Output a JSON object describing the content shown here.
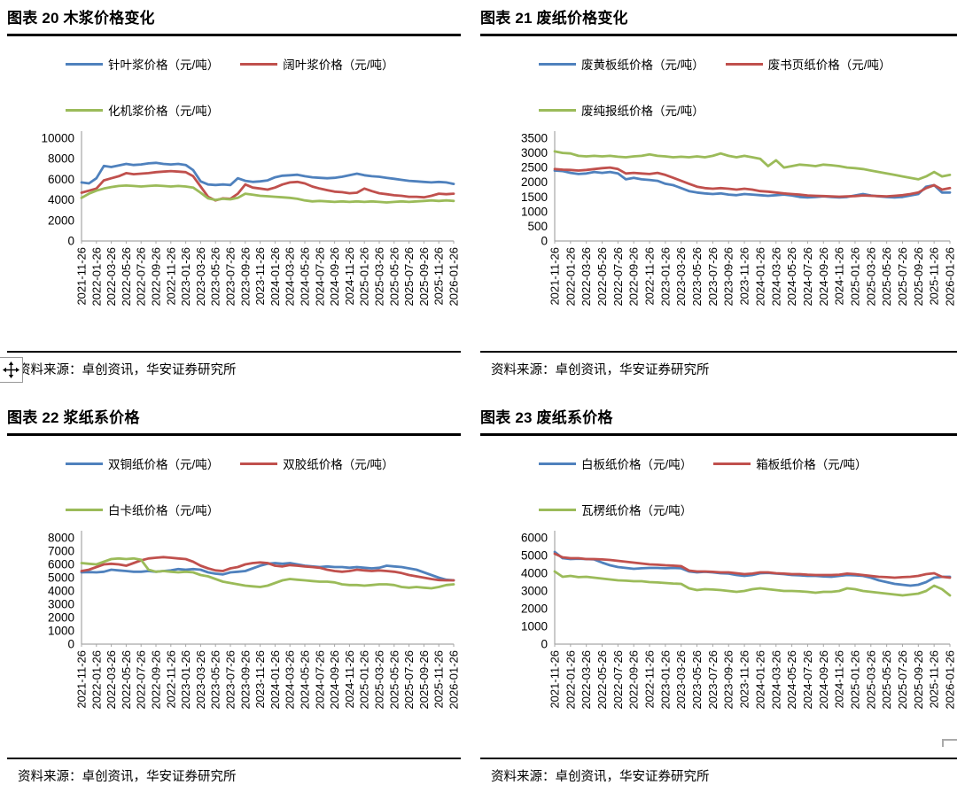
{
  "page": {
    "background": "#FFFFFF"
  },
  "icons": {
    "move_handle": "four-direction-move-arrows",
    "selection_corner": "object-selection-corner-bracket"
  },
  "source_note": "资料来源：卓创资讯，华安证券研究所",
  "chart_data": [
    {
      "type": "line",
      "figure_label": "图表 20",
      "title": "图表 20 木浆价格变化",
      "source": "资料来源：卓创资讯，华安证券研究所",
      "legend_position": "top",
      "grid": false,
      "xlabel": "",
      "ylabel": "",
      "ylim": [
        0,
        10000
      ],
      "ytick_interval": 2000,
      "x_sampling": "monthly, 2021-11-26 to 2026-01-26",
      "x_tick_labels": [
        "2021-11-26",
        "2022-01-26",
        "2022-03-26",
        "2022-05-26",
        "2022-07-26",
        "2022-09-26",
        "2022-11-26",
        "2023-01-26",
        "2023-03-26",
        "2023-05-26",
        "2023-07-26",
        "2023-09-26",
        "2023-11-26",
        "2024-01-26",
        "2024-03-26",
        "2024-05-26",
        "2024-07-26",
        "2024-09-26",
        "2024-11-26",
        "2025-01-26",
        "2025-03-26",
        "2025-05-26",
        "2025-07-26",
        "2025-09-26",
        "2025-11-26",
        "2026-01-26"
      ],
      "series": [
        {
          "name": "针叶浆价格（元/吨）",
          "color": "#4F81BD",
          "values": [
            5700,
            5600,
            6100,
            7300,
            7200,
            7350,
            7500,
            7400,
            7450,
            7550,
            7600,
            7500,
            7450,
            7500,
            7400,
            6900,
            5800,
            5500,
            5450,
            5500,
            5450,
            6100,
            5850,
            5750,
            5800,
            5900,
            6200,
            6350,
            6400,
            6450,
            6300,
            6200,
            6150,
            6100,
            6150,
            6250,
            6400,
            6550,
            6400,
            6300,
            6250,
            6150,
            6050,
            5950,
            5850,
            5800,
            5750,
            5700,
            5750,
            5700,
            5550
          ]
        },
        {
          "name": "阔叶浆价格（元/吨）",
          "color": "#C0504D",
          "values": [
            4700,
            4900,
            5100,
            5900,
            6100,
            6300,
            6600,
            6500,
            6550,
            6600,
            6700,
            6750,
            6800,
            6750,
            6700,
            6300,
            5300,
            4300,
            3950,
            4150,
            4100,
            4600,
            5500,
            5200,
            5100,
            5000,
            5200,
            5500,
            5700,
            5750,
            5600,
            5300,
            5100,
            4950,
            4800,
            4750,
            4650,
            4700,
            5100,
            4850,
            4650,
            4550,
            4450,
            4400,
            4300,
            4300,
            4250,
            4400,
            4600,
            4550,
            4600
          ]
        },
        {
          "name": "化机浆价格（元/吨）",
          "color": "#9BBB59",
          "values": [
            4200,
            4600,
            4900,
            5100,
            5250,
            5350,
            5400,
            5350,
            5300,
            5350,
            5400,
            5350,
            5300,
            5350,
            5300,
            5200,
            4700,
            4150,
            4000,
            4100,
            4050,
            4200,
            4600,
            4500,
            4400,
            4350,
            4300,
            4250,
            4200,
            4100,
            3950,
            3850,
            3900,
            3850,
            3800,
            3850,
            3800,
            3850,
            3800,
            3850,
            3800,
            3750,
            3800,
            3850,
            3800,
            3850,
            3900,
            3950,
            3900,
            3950,
            3900
          ]
        }
      ]
    },
    {
      "type": "line",
      "figure_label": "图表 21",
      "title": "图表 21 废纸价格变化",
      "source": "资料来源：卓创资讯，华安证券研究所",
      "legend_position": "top",
      "grid": false,
      "xlabel": "",
      "ylabel": "",
      "ylim": [
        0,
        3500
      ],
      "ytick_interval": 500,
      "x_sampling": "monthly, 2021-11-26 to 2026-01-26",
      "x_tick_labels": [
        "2021-11-26",
        "2022-01-26",
        "2022-03-26",
        "2022-05-26",
        "2022-07-26",
        "2022-09-26",
        "2022-11-26",
        "2023-01-26",
        "2023-03-26",
        "2023-05-26",
        "2023-07-26",
        "2023-09-26",
        "2023-11-26",
        "2024-01-26",
        "2024-03-26",
        "2024-05-26",
        "2024-07-26",
        "2024-09-26",
        "2024-11-26",
        "2025-01-26",
        "2025-03-26",
        "2025-05-26",
        "2025-07-26",
        "2025-09-26",
        "2025-11-26",
        "2026-01-26"
      ],
      "series": [
        {
          "name": "废黄板纸价格（元/吨）",
          "color": "#4F81BD",
          "values": [
            2400,
            2380,
            2320,
            2280,
            2300,
            2350,
            2320,
            2350,
            2300,
            2100,
            2150,
            2100,
            2080,
            2050,
            1950,
            1900,
            1800,
            1700,
            1650,
            1620,
            1600,
            1620,
            1580,
            1560,
            1600,
            1580,
            1560,
            1540,
            1560,
            1580,
            1550,
            1500,
            1480,
            1500,
            1520,
            1500,
            1480,
            1500,
            1550,
            1600,
            1550,
            1520,
            1500,
            1480,
            1500,
            1550,
            1600,
            1850,
            1900,
            1650,
            1650
          ]
        },
        {
          "name": "废书页纸价格（元/吨）",
          "color": "#C0504D",
          "values": [
            2450,
            2430,
            2420,
            2400,
            2420,
            2450,
            2480,
            2500,
            2450,
            2300,
            2320,
            2300,
            2280,
            2320,
            2250,
            2150,
            2050,
            1950,
            1850,
            1800,
            1780,
            1800,
            1780,
            1750,
            1780,
            1750,
            1700,
            1680,
            1650,
            1620,
            1600,
            1580,
            1550,
            1540,
            1530,
            1520,
            1510,
            1520,
            1530,
            1550,
            1540,
            1530,
            1520,
            1540,
            1560,
            1600,
            1650,
            1800,
            1900,
            1750,
            1800
          ]
        },
        {
          "name": "废纯报纸价格（元/吨）",
          "color": "#9BBB59",
          "values": [
            3050,
            3000,
            2980,
            2900,
            2880,
            2900,
            2880,
            2900,
            2870,
            2850,
            2880,
            2900,
            2950,
            2900,
            2880,
            2850,
            2870,
            2850,
            2880,
            2850,
            2900,
            2980,
            2900,
            2850,
            2900,
            2850,
            2800,
            2550,
            2750,
            2500,
            2550,
            2600,
            2580,
            2550,
            2600,
            2580,
            2550,
            2500,
            2480,
            2450,
            2400,
            2350,
            2300,
            2250,
            2200,
            2150,
            2100,
            2200,
            2350,
            2200,
            2250
          ]
        }
      ]
    },
    {
      "type": "line",
      "figure_label": "图表 22",
      "title": "图表 22 浆纸系价格",
      "source": "资料来源：卓创资讯，华安证券研究所",
      "legend_position": "top",
      "grid": false,
      "xlabel": "",
      "ylabel": "",
      "ylim": [
        0,
        8000
      ],
      "ytick_interval": 1000,
      "x_sampling": "monthly, 2021-11-26 to 2026-01-26",
      "x_tick_labels": [
        "2021-11-26",
        "2022-01-26",
        "2022-03-26",
        "2022-05-26",
        "2022-07-26",
        "2022-09-26",
        "2022-11-26",
        "2023-01-26",
        "2023-03-26",
        "2023-05-26",
        "2023-07-26",
        "2023-09-26",
        "2023-11-26",
        "2024-01-26",
        "2024-03-26",
        "2024-05-26",
        "2024-07-26",
        "2024-09-26",
        "2024-11-26",
        "2025-01-26",
        "2025-03-26",
        "2025-05-26",
        "2025-07-26",
        "2025-09-26",
        "2025-11-26",
        "2026-01-26"
      ],
      "series": [
        {
          "name": "双铜纸价格（元/吨）",
          "color": "#4F81BD",
          "values": [
            5400,
            5420,
            5400,
            5450,
            5600,
            5550,
            5500,
            5450,
            5450,
            5500,
            5450,
            5500,
            5550,
            5650,
            5600,
            5650,
            5600,
            5400,
            5300,
            5250,
            5400,
            5450,
            5500,
            5700,
            5900,
            6050,
            6100,
            6050,
            6100,
            6000,
            5900,
            5850,
            5800,
            5850,
            5800,
            5800,
            5750,
            5800,
            5750,
            5700,
            5750,
            5900,
            5850,
            5800,
            5700,
            5600,
            5400,
            5200,
            5000,
            4850,
            4800
          ]
        },
        {
          "name": "双胶纸价格（元/吨）",
          "color": "#C0504D",
          "values": [
            5500,
            5600,
            5800,
            6000,
            6050,
            6000,
            5900,
            6100,
            6300,
            6450,
            6500,
            6550,
            6500,
            6450,
            6400,
            6200,
            5900,
            5700,
            5550,
            5500,
            5700,
            5800,
            6000,
            6100,
            6150,
            6100,
            5900,
            5850,
            5950,
            5900,
            5850,
            5800,
            5750,
            5600,
            5500,
            5450,
            5500,
            5600,
            5550,
            5500,
            5550,
            5500,
            5450,
            5350,
            5200,
            5100,
            5000,
            4900,
            4820,
            4800,
            4800
          ]
        },
        {
          "name": "白卡纸价格（元/吨）",
          "color": "#9BBB59",
          "values": [
            6100,
            6050,
            6000,
            6200,
            6400,
            6450,
            6400,
            6450,
            6350,
            5600,
            5450,
            5500,
            5450,
            5400,
            5450,
            5400,
            5200,
            5100,
            4900,
            4700,
            4600,
            4500,
            4400,
            4350,
            4300,
            4400,
            4600,
            4800,
            4900,
            4850,
            4800,
            4750,
            4700,
            4700,
            4650,
            4500,
            4450,
            4450,
            4400,
            4450,
            4500,
            4500,
            4450,
            4300,
            4250,
            4300,
            4250,
            4200,
            4300,
            4450,
            4500
          ]
        }
      ]
    },
    {
      "type": "line",
      "figure_label": "图表 23",
      "title": "图表 23 废纸系价格",
      "source": "资料来源：卓创资讯，华安证券研究所",
      "legend_position": "top",
      "grid": false,
      "xlabel": "",
      "ylabel": "",
      "ylim": [
        0,
        6000
      ],
      "ytick_interval": 1000,
      "x_sampling": "monthly, 2021-11-26 to 2026-01-26",
      "x_tick_labels": [
        "2021-11-26",
        "2022-01-26",
        "2022-03-26",
        "2022-05-26",
        "2022-07-26",
        "2022-09-26",
        "2022-11-26",
        "2023-01-26",
        "2023-03-26",
        "2023-05-26",
        "2023-07-26",
        "2023-09-26",
        "2023-11-26",
        "2024-01-26",
        "2024-03-26",
        "2024-05-26",
        "2024-07-26",
        "2024-09-26",
        "2024-11-26",
        "2025-01-26",
        "2025-03-26",
        "2025-05-26",
        "2025-07-26",
        "2025-09-26",
        "2025-11-26",
        "2026-01-26"
      ],
      "series": [
        {
          "name": "白板纸价格（元/吨）",
          "color": "#4F81BD",
          "values": [
            5200,
            4850,
            4800,
            4820,
            4800,
            4780,
            4600,
            4450,
            4350,
            4300,
            4250,
            4280,
            4300,
            4300,
            4280,
            4300,
            4280,
            4100,
            4050,
            4080,
            4050,
            4000,
            3980,
            3900,
            3850,
            3900,
            4000,
            4020,
            3980,
            3950,
            3900,
            3880,
            3850,
            3850,
            3820,
            3800,
            3850,
            3900,
            3880,
            3850,
            3750,
            3600,
            3500,
            3400,
            3350,
            3300,
            3350,
            3500,
            3750,
            3800,
            3800
          ]
        },
        {
          "name": "箱板纸价格（元/吨）",
          "color": "#C0504D",
          "values": [
            5100,
            4900,
            4850,
            4850,
            4800,
            4800,
            4780,
            4750,
            4700,
            4650,
            4600,
            4550,
            4500,
            4480,
            4450,
            4430,
            4400,
            4150,
            4100,
            4100,
            4080,
            4050,
            4050,
            4000,
            3950,
            3980,
            4050,
            4050,
            4000,
            3980,
            3950,
            3950,
            3920,
            3900,
            3900,
            3900,
            3920,
            3980,
            3950,
            3900,
            3850,
            3800,
            3780,
            3750,
            3780,
            3800,
            3850,
            3950,
            4000,
            3800,
            3750
          ]
        },
        {
          "name": "瓦楞纸价格（元/吨）",
          "color": "#9BBB59",
          "values": [
            4100,
            3800,
            3850,
            3780,
            3800,
            3750,
            3700,
            3650,
            3600,
            3580,
            3550,
            3550,
            3500,
            3480,
            3450,
            3420,
            3400,
            3150,
            3050,
            3100,
            3080,
            3050,
            3000,
            2950,
            3000,
            3100,
            3150,
            3100,
            3050,
            3000,
            3000,
            2980,
            2950,
            2900,
            2950,
            2950,
            3000,
            3150,
            3100,
            3000,
            2950,
            2900,
            2850,
            2800,
            2750,
            2800,
            2850,
            3000,
            3300,
            3100,
            2750
          ]
        }
      ]
    }
  ]
}
